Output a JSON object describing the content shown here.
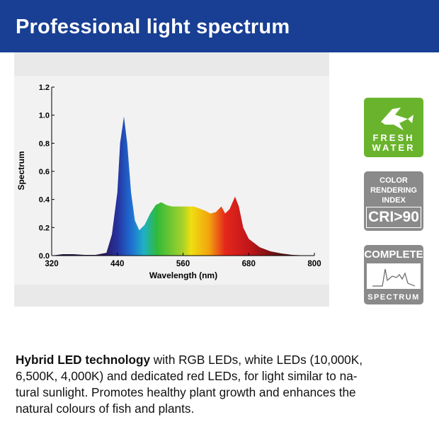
{
  "header": {
    "title": "Professional light spectrum"
  },
  "chart_data": {
    "type": "area",
    "x_label": "Wavelength (nm)",
    "y_label": "Spectrum",
    "x": [
      320,
      340,
      360,
      380,
      400,
      420,
      430,
      440,
      445,
      452,
      458,
      465,
      472,
      480,
      490,
      500,
      510,
      520,
      530,
      540,
      560,
      580,
      600,
      610,
      620,
      630,
      637,
      645,
      655,
      662,
      670,
      680,
      700,
      720,
      740,
      760,
      780,
      800
    ],
    "values": [
      0,
      0.01,
      0.01,
      0.005,
      0.005,
      0.02,
      0.15,
      0.45,
      0.8,
      0.99,
      0.8,
      0.45,
      0.25,
      0.18,
      0.22,
      0.3,
      0.36,
      0.38,
      0.36,
      0.35,
      0.35,
      0.35,
      0.32,
      0.3,
      0.31,
      0.35,
      0.3,
      0.33,
      0.42,
      0.35,
      0.2,
      0.12,
      0.06,
      0.03,
      0.015,
      0.005,
      0.002,
      0
    ],
    "xlim": [
      320,
      800
    ],
    "xticks": [
      320,
      440,
      560,
      680,
      800
    ],
    "ylim": [
      0,
      1.2
    ],
    "yticks": [
      {
        "value": 0,
        "label": "0.0"
      },
      0.2,
      0.4,
      0.6,
      0.8,
      {
        "value": 1,
        "label": "1.0"
      },
      1.2
    ],
    "grid": false
  },
  "badges": {
    "fresh": [
      "FRESH",
      "WATER"
    ],
    "cri": [
      "COLOR",
      "RENDERING",
      "INDEX",
      "CRI>90"
    ],
    "spectrum": [
      "COMPLETE",
      "SPECTRUM"
    ]
  },
  "body": {
    "bold": "Hybrid LED technology",
    "lines": [
      " with RGB LEDs, white LEDs (10,000K,",
      "6,500K, 4,000K) and dedicated red LEDs, for light similar to na-",
      "tural sunlight. Promotes healthy plant growth and enhances the",
      "natural colours of fish and plants."
    ]
  }
}
